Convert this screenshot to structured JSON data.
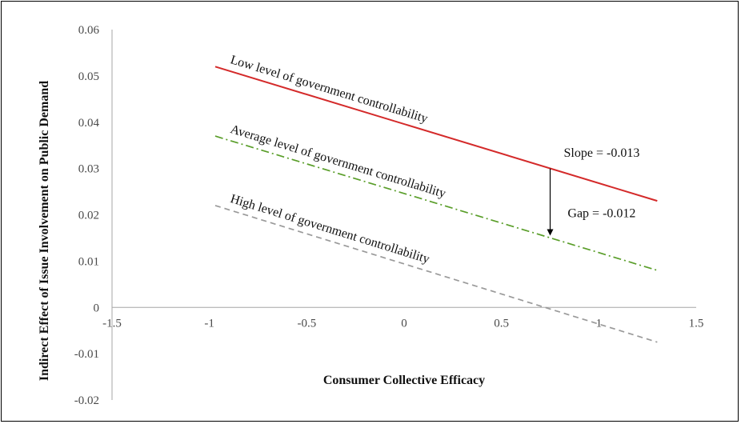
{
  "chart_data": {
    "type": "line",
    "xlabel": "Consumer Collective Efficacy",
    "ylabel": "Indirect Effect of Issue Involvement on Public Demand",
    "xlim": [
      -1.5,
      1.5
    ],
    "ylim": [
      -0.02,
      0.06
    ],
    "x_ticks": [
      "-1.5",
      "-1",
      "-0.5",
      "0",
      "0.5",
      "1",
      "1.5"
    ],
    "y_ticks": [
      "0.06",
      "0.05",
      "0.04",
      "0.03",
      "0.02",
      "0.01",
      "0",
      "-0.01",
      "-0.02"
    ],
    "grid": false,
    "legend": "none",
    "series": [
      {
        "name": "Low level of government controllability",
        "x": [
          -0.97,
          1.3
        ],
        "y": [
          0.052,
          0.023
        ],
        "color": "#d42a2a",
        "dash": "solid"
      },
      {
        "name": "Average level of government controllability",
        "x": [
          -0.97,
          1.3
        ],
        "y": [
          0.037,
          0.008
        ],
        "color": "#5a9e2a",
        "dash": "dash-dot"
      },
      {
        "name": "High level of government controllability",
        "x": [
          -0.97,
          1.3
        ],
        "y": [
          0.022,
          -0.0075
        ],
        "color": "#9a9a9a",
        "dash": "dashed"
      }
    ],
    "annotations": [
      {
        "text": "Slope = -0.013"
      },
      {
        "text": "Gap = -0.012"
      }
    ],
    "gap_arrow": {
      "x": 0.75,
      "y_from": 0.03,
      "y_to": 0.0155
    }
  }
}
